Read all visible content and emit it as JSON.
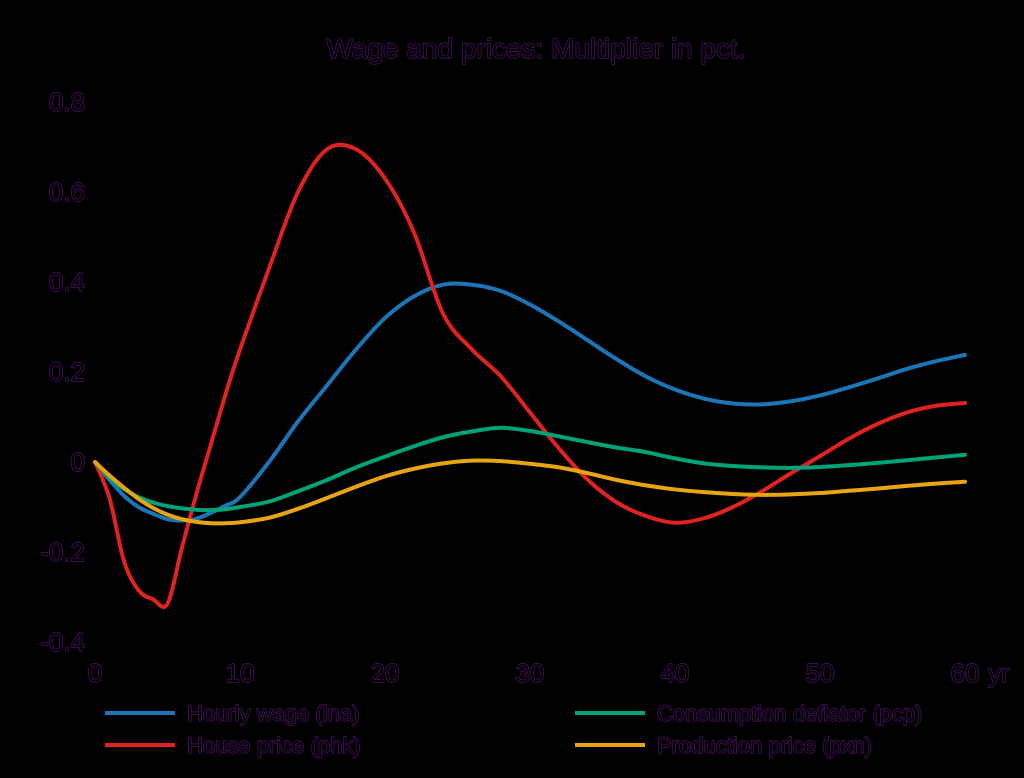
{
  "title": "Wage and prices: Multiplier in pct.",
  "colors": {
    "background": "#000000",
    "text_fill": "#050008",
    "text_stroke": "#4b1462",
    "axis": "#000000"
  },
  "legend": {
    "items": [
      {
        "label": "Hourly wage (lna)"
      },
      {
        "label": "House price (phk)"
      },
      {
        "label": "Consumption deflator (pcp)"
      },
      {
        "label": "Production price (pxn)"
      }
    ]
  },
  "chart_data": {
    "type": "line",
    "title": "Wage and prices: Multiplier in pct.",
    "xlabel": "",
    "ylabel": "",
    "x_unit_label": "yr",
    "xlim": [
      0,
      60
    ],
    "ylim": [
      -0.4,
      0.8
    ],
    "grid": false,
    "legend_position": "bottom",
    "x_ticks": [
      0,
      10,
      20,
      30,
      40,
      50,
      60
    ],
    "x_tick_labels": [
      "0",
      "10",
      "20",
      "30",
      "40",
      "50",
      "60"
    ],
    "y_ticks": [
      0.8,
      0.6,
      0.4,
      0.2,
      0,
      -0.2,
      -0.4
    ],
    "y_tick_labels": [
      "0.8",
      "0.6",
      "0.4",
      "0.2",
      "0",
      "-0.2",
      "-0.4"
    ],
    "x": [
      0,
      1,
      2,
      3,
      4,
      5,
      6,
      7,
      8,
      9,
      10,
      12,
      14,
      16,
      18,
      20,
      22,
      24,
      26,
      28,
      30,
      32,
      34,
      36,
      38,
      40,
      42,
      44,
      46,
      48,
      50,
      52,
      54,
      56,
      58,
      60
    ],
    "series": [
      {
        "name": "Hourly wage (lna)",
        "id": "lna",
        "color": "#1b76b8",
        "values": [
          0,
          -0.04,
          -0.075,
          -0.1,
          -0.115,
          -0.127,
          -0.13,
          -0.126,
          -0.113,
          -0.097,
          -0.078,
          0.0,
          0.09,
          0.17,
          0.25,
          0.32,
          0.368,
          0.394,
          0.394,
          0.38,
          0.35,
          0.312,
          0.27,
          0.228,
          0.19,
          0.161,
          0.141,
          0.13,
          0.128,
          0.135,
          0.148,
          0.166,
          0.186,
          0.207,
          0.224,
          0.238
        ]
      },
      {
        "name": "House price (phk)",
        "id": "phk",
        "color": "#e02220",
        "values": [
          0,
          -0.08,
          -0.22,
          -0.285,
          -0.305,
          -0.315,
          -0.19,
          -0.07,
          0.04,
          0.15,
          0.25,
          0.43,
          0.6,
          0.695,
          0.695,
          0.63,
          0.51,
          0.33,
          0.25,
          0.19,
          0.11,
          0.03,
          -0.04,
          -0.09,
          -0.12,
          -0.135,
          -0.125,
          -0.1,
          -0.065,
          -0.025,
          0.013,
          0.052,
          0.085,
          0.11,
          0.125,
          0.131
        ]
      },
      {
        "name": "Consumption deflator (pcp)",
        "id": "pcp",
        "color": "#00a377",
        "values": [
          0,
          -0.035,
          -0.06,
          -0.078,
          -0.09,
          -0.098,
          -0.103,
          -0.106,
          -0.107,
          -0.105,
          -0.1,
          -0.088,
          -0.065,
          -0.04,
          -0.012,
          0.012,
          0.035,
          0.055,
          0.068,
          0.076,
          0.069,
          0.057,
          0.044,
          0.032,
          0.022,
          0.008,
          -0.003,
          -0.009,
          -0.012,
          -0.013,
          -0.011,
          -0.007,
          -0.002,
          0.004,
          0.01,
          0.016
        ]
      },
      {
        "name": "Production price (pxn)",
        "id": "pxn",
        "color": "#e9a511",
        "values": [
          0,
          -0.03,
          -0.057,
          -0.082,
          -0.102,
          -0.117,
          -0.127,
          -0.133,
          -0.136,
          -0.136,
          -0.134,
          -0.124,
          -0.104,
          -0.08,
          -0.055,
          -0.032,
          -0.015,
          -0.003,
          0.003,
          0.002,
          -0.004,
          -0.012,
          -0.025,
          -0.04,
          -0.052,
          -0.061,
          -0.067,
          -0.071,
          -0.073,
          -0.072,
          -0.069,
          -0.064,
          -0.059,
          -0.053,
          -0.048,
          -0.044
        ]
      }
    ]
  }
}
